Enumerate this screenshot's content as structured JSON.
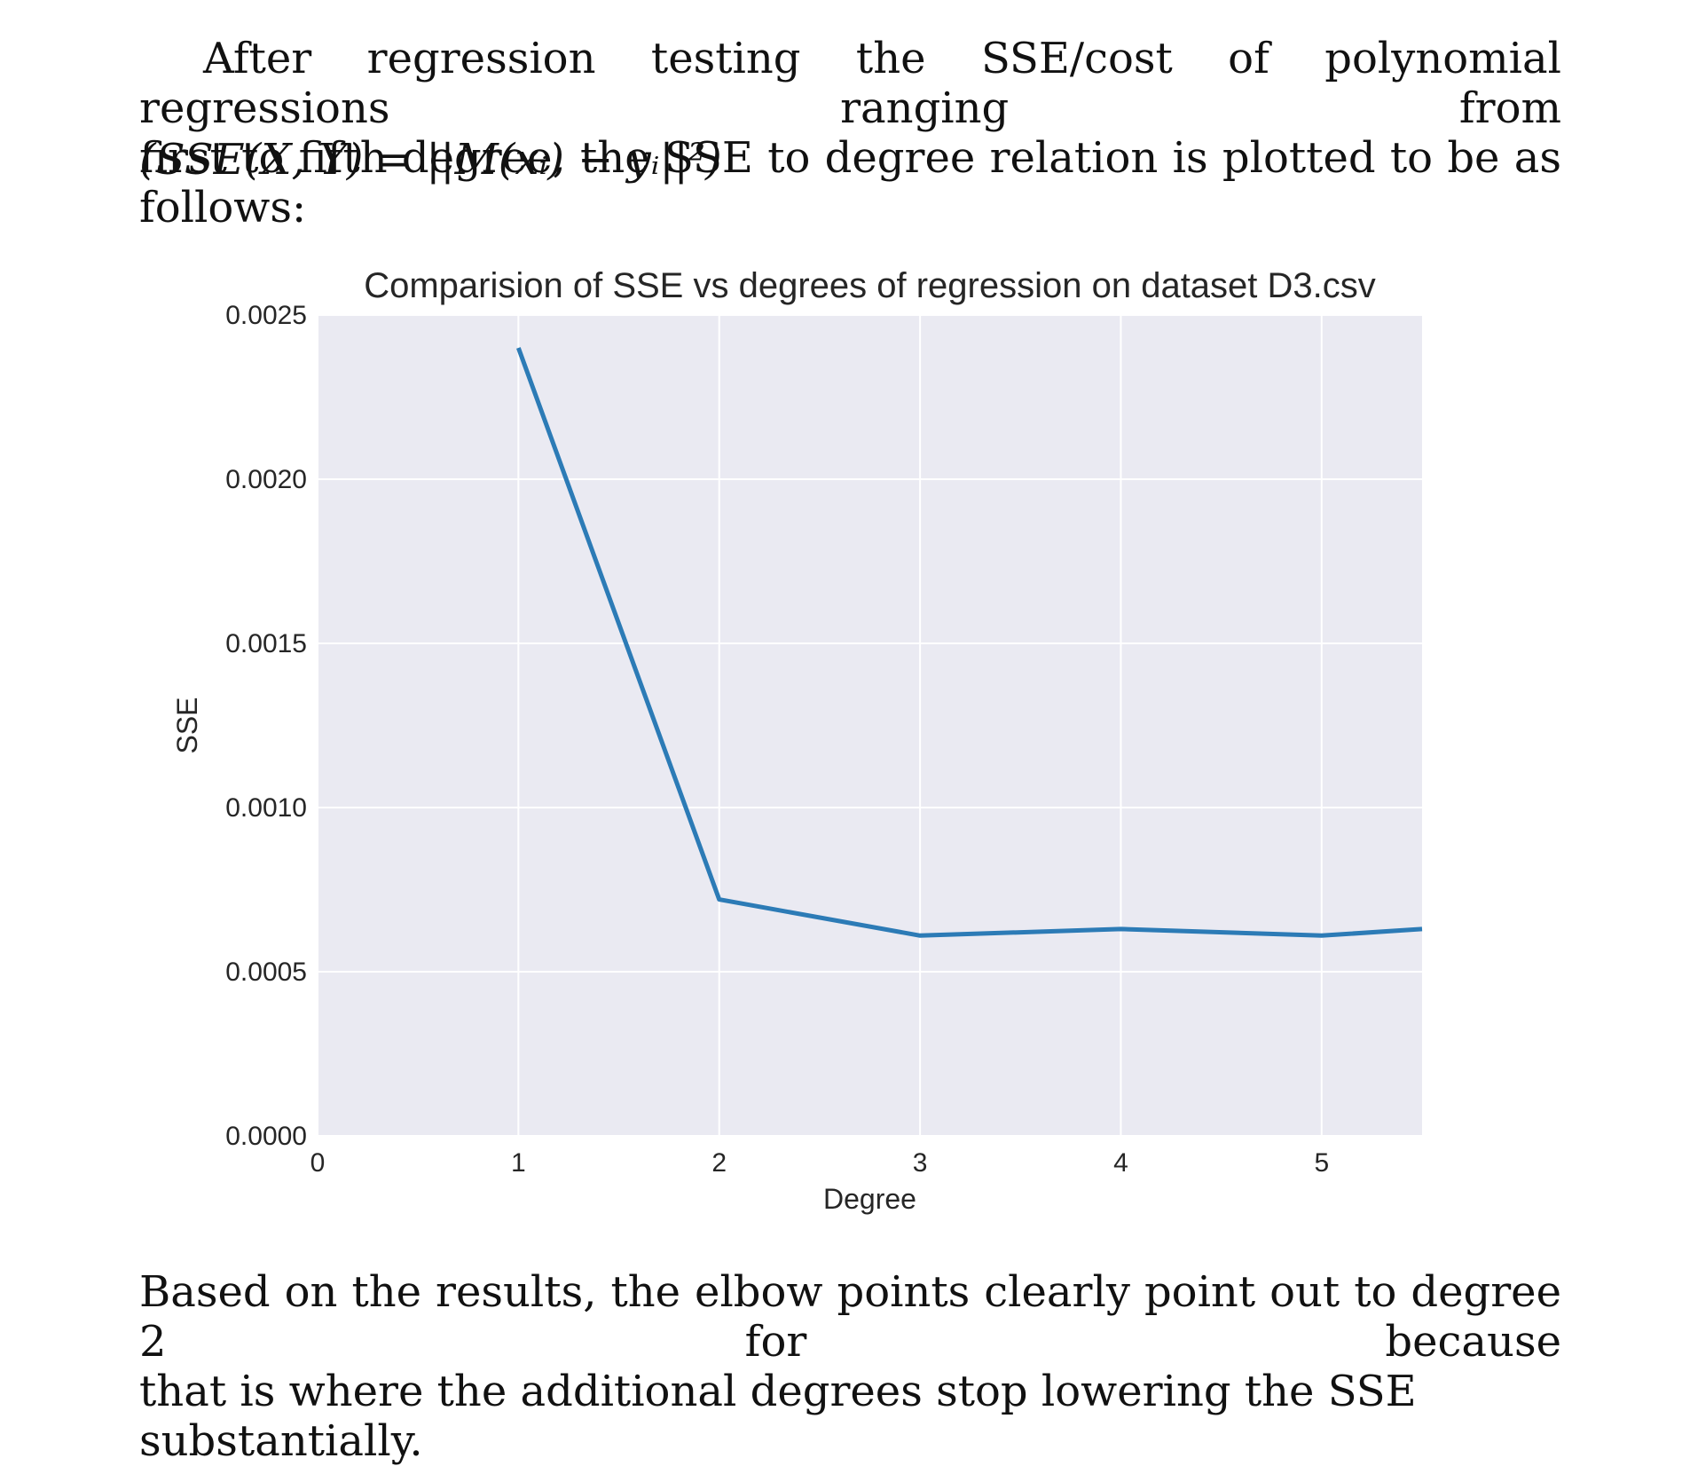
{
  "intro": {
    "line1": "After regression testing the SSE/cost of polynomial regressions ranging from",
    "line2": "first to fifth degree, the SSE to degree relation is plotted to be as follows:"
  },
  "formula": {
    "text": "(SSE(X, Y) = ||M(xᵢ) − yᵢ||²)"
  },
  "conclusion": {
    "line1": "Based on the results, the elbow points clearly point out to degree 2 for because",
    "line2": "that is where the additional degrees stop lowering the SSE substantially."
  },
  "chart_data": {
    "type": "line",
    "title": "Comparision of SSE vs degrees of regression on dataset D3.csv",
    "xlabel": "Degree",
    "ylabel": "SSE",
    "x": [
      1,
      2,
      3,
      4,
      5,
      5.5
    ],
    "series": [
      {
        "values": [
          0.0024,
          0.00072,
          0.00061,
          0.00063,
          0.00061,
          0.00063
        ]
      }
    ],
    "xlim": [
      0,
      5.5
    ],
    "ylim": [
      0,
      0.0025
    ],
    "xticks": [
      "0",
      "1",
      "2",
      "3",
      "4",
      "5"
    ],
    "yticks": [
      "0.0000",
      "0.0005",
      "0.0010",
      "0.0015",
      "0.0020",
      "0.0025"
    ],
    "grid": true,
    "colors": {
      "background": "#eaeaf2",
      "grid": "#ffffff",
      "line": "#2c7bb6"
    }
  }
}
